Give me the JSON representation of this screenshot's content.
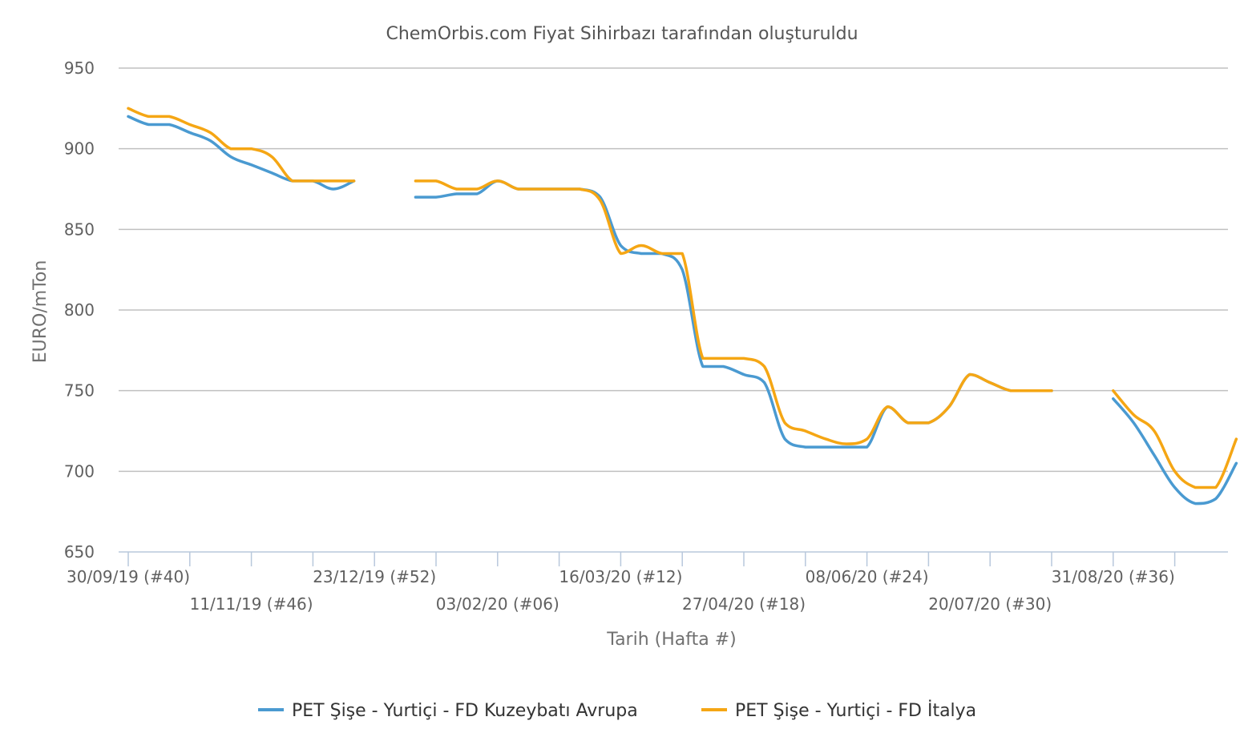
{
  "chart_data": {
    "type": "line",
    "title": "ChemOrbis.com Fiyat Sihirbazı tarafından oluşturuldu",
    "xlabel": "Tarih (Hafta #)",
    "ylabel": "EURO/mTon",
    "ylim": [
      650,
      950
    ],
    "yticks": [
      "950",
      "900",
      "850",
      "800",
      "750",
      "700",
      "650"
    ],
    "grid": true,
    "legend": "bottom-center",
    "x_tick_labels": [
      {
        "week": 0,
        "label": "30/09/19 (#40)"
      },
      {
        "week": 6,
        "label": "11/11/19 (#46)"
      },
      {
        "week": 12,
        "label": "23/12/19 (#52)"
      },
      {
        "week": 18,
        "label": "03/02/20 (#06)"
      },
      {
        "week": 24,
        "label": "16/03/20 (#12)"
      },
      {
        "week": 30,
        "label": "27/04/20 (#18)"
      },
      {
        "week": 36,
        "label": "08/06/20 (#24)"
      },
      {
        "week": 42,
        "label": "20/07/20 (#30)"
      },
      {
        "week": 48,
        "label": "31/08/20 (#36)"
      }
    ],
    "series": [
      {
        "name": "PET Şişe - Yurtiçi - FD Kuzeybatı Avrupa",
        "color": "#4a9ad1",
        "values": [
          920,
          915,
          915,
          910,
          905,
          895,
          890,
          885,
          880,
          880,
          875,
          880,
          null,
          null,
          870,
          870,
          872,
          872,
          880,
          875,
          875,
          875,
          875,
          870,
          840,
          835,
          835,
          825,
          765,
          765,
          760,
          755,
          720,
          715,
          715,
          715,
          715,
          740,
          730,
          730,
          740,
          760,
          755,
          750,
          750,
          750,
          null,
          null,
          745,
          730,
          710,
          690,
          680,
          683,
          705
        ]
      },
      {
        "name": "PET Şişe - Yurtiçi - FD İtalya",
        "color": "#f5a614",
        "values": [
          925,
          920,
          920,
          915,
          910,
          900,
          900,
          895,
          880,
          880,
          880,
          880,
          null,
          null,
          880,
          880,
          875,
          875,
          880,
          875,
          875,
          875,
          875,
          868,
          835,
          840,
          835,
          835,
          770,
          770,
          770,
          765,
          730,
          725,
          720,
          717,
          720,
          740,
          730,
          730,
          740,
          760,
          755,
          750,
          750,
          750,
          null,
          null,
          750,
          735,
          725,
          700,
          690,
          690,
          720
        ]
      }
    ]
  }
}
